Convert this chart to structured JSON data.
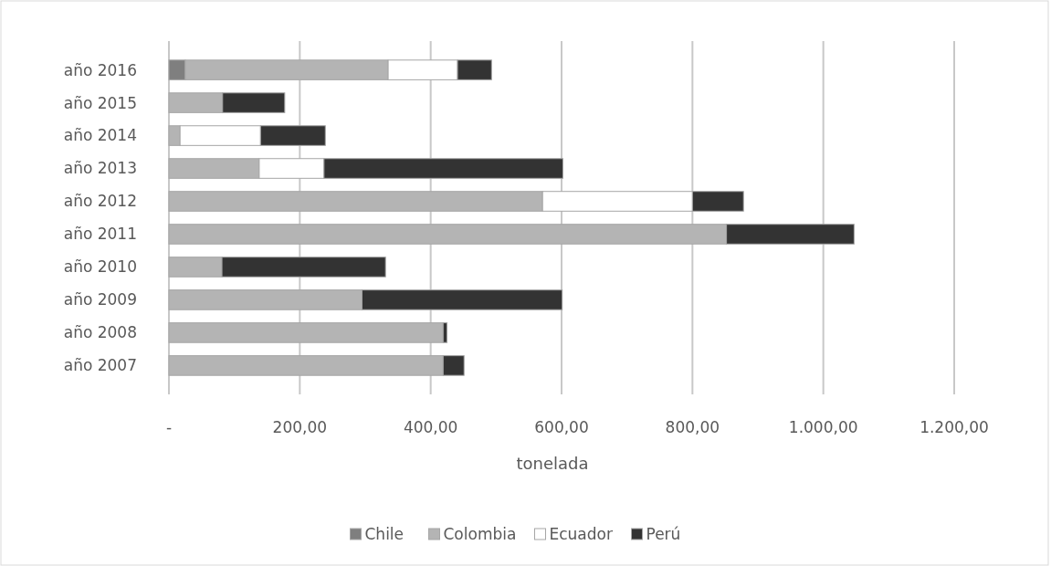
{
  "chart_data": {
    "type": "bar",
    "orientation": "horizontal",
    "stacked": true,
    "categories": [
      "año 2016",
      "año 2015",
      "año 2014",
      "año 2013",
      "año 2012",
      "año 2011",
      "año 2010",
      "año 2009",
      "año 2008",
      "año 2007"
    ],
    "series": [
      {
        "name": "Chile",
        "color": "#7f7f7f",
        "values": [
          25,
          0,
          0,
          0,
          0,
          0,
          0,
          0,
          0,
          0
        ]
      },
      {
        "name": "Colombia",
        "color": "#b4b4b4",
        "values": [
          310,
          82,
          17,
          138,
          571,
          852,
          81,
          295,
          419,
          419
        ]
      },
      {
        "name": "Ecuador",
        "color": "#ffffff",
        "values": [
          106,
          0,
          123,
          99,
          229,
          0,
          0,
          0,
          0,
          0
        ]
      },
      {
        "name": "Perú",
        "color": "#333333",
        "values": [
          52,
          95,
          99,
          365,
          78,
          195,
          250,
          306,
          6,
          32
        ]
      }
    ],
    "xlim": [
      0,
      1200
    ],
    "xticks": [
      {
        "value": 0,
        "label": "-"
      },
      {
        "value": 200,
        "label": "200,00"
      },
      {
        "value": 400,
        "label": "400,00"
      },
      {
        "value": 600,
        "label": "600,00"
      },
      {
        "value": 800,
        "label": "800,00"
      },
      {
        "value": 1000,
        "label": "1.000,00"
      },
      {
        "value": 1200,
        "label": "1.200,00"
      }
    ],
    "xlabel": "tonelada",
    "grid": "x",
    "legend": "bottom"
  }
}
